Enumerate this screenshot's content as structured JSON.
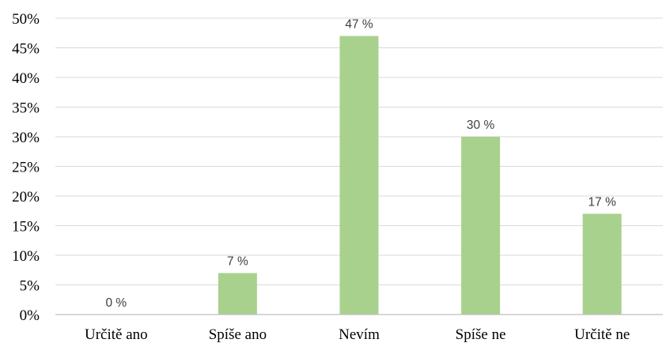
{
  "chart_data": {
    "type": "bar",
    "title": "",
    "xlabel": "",
    "ylabel": "",
    "categories": [
      "Určitě ano",
      "Spíše ano",
      "Nevím",
      "Spíše ne",
      "Určitě ne"
    ],
    "values": [
      0,
      7,
      47,
      30,
      17
    ],
    "data_labels": [
      "0 %",
      "7 %",
      "47 %",
      "30 %",
      "17 %"
    ],
    "ylim": [
      0,
      50
    ],
    "yticks": [
      0,
      5,
      10,
      15,
      20,
      25,
      30,
      35,
      40,
      45,
      50
    ],
    "ytick_labels": [
      "0%",
      "5%",
      "10%",
      "15%",
      "20%",
      "25%",
      "30%",
      "35%",
      "40%",
      "45%",
      "50%"
    ],
    "grid": true,
    "legend": "none",
    "colors": {
      "bar": "#a9d18e"
    }
  }
}
